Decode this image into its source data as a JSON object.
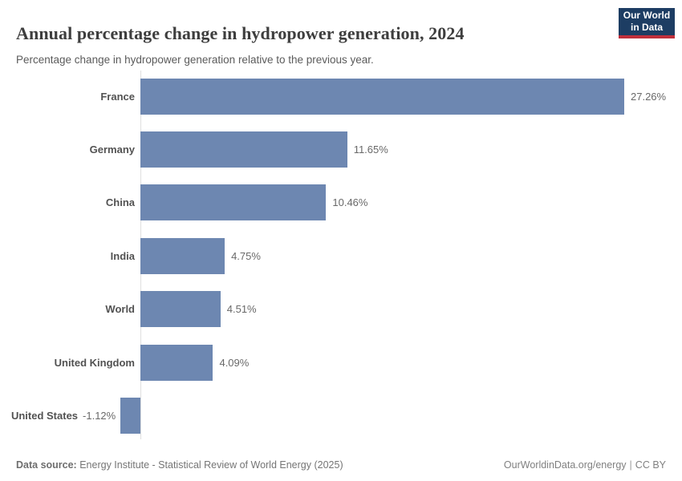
{
  "header": {
    "title": "Annual percentage change in hydropower generation, 2024",
    "subtitle": "Percentage change in hydropower generation relative to the previous year.",
    "logo": {
      "line1": "Our World",
      "line2": "in Data"
    }
  },
  "chart_data": {
    "type": "bar",
    "orientation": "horizontal",
    "title": "Annual percentage change in hydropower generation, 2024",
    "xlabel": "",
    "ylabel": "",
    "categories": [
      "France",
      "Germany",
      "China",
      "India",
      "World",
      "United Kingdom",
      "United States"
    ],
    "values": [
      27.26,
      11.65,
      10.46,
      4.75,
      4.51,
      4.09,
      -1.12
    ],
    "value_labels": [
      "27.26%",
      "11.65%",
      "10.46%",
      "4.75%",
      "4.51%",
      "4.09%",
      "-1.12%"
    ],
    "xlim": [
      -1.12,
      27.26
    ],
    "grid": false,
    "legend": "none",
    "bar_color": "#6d87b1"
  },
  "footer": {
    "source_label": "Data source:",
    "source_text": "Energy Institute - Statistical Review of World Energy (2025)",
    "link_text": "OurWorldinData.org/energy",
    "separator": "|",
    "license_text": "CC BY"
  },
  "colors": {
    "bar": "#6d87b1",
    "axis_line": "#e0e0e0",
    "title_text": "#3e3e3e",
    "subtitle_text": "#5b5b5b",
    "label_text": "#525252",
    "value_text": "#696969",
    "logo_bg": "#1d3d63",
    "logo_accent": "#c0303c"
  }
}
